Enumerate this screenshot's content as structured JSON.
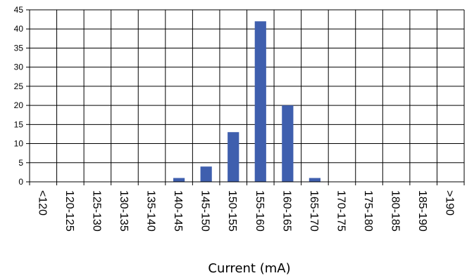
{
  "chart_data": {
    "type": "bar",
    "categories": [
      "<120",
      "120-125",
      "125-130",
      "130-135",
      "135-140",
      "140-145",
      "145-150",
      "150-155",
      "155-160",
      "160-165",
      "165-170",
      "170-175",
      "175-180",
      "180-185",
      "185-190",
      ">190"
    ],
    "values": [
      0,
      0,
      0,
      0,
      0,
      1,
      4,
      13,
      42,
      20,
      1,
      0,
      0,
      0,
      0,
      0
    ],
    "title": "",
    "xlabel": "Current (mA)",
    "ylabel": "",
    "ylim": [
      0,
      45
    ],
    "yticks": [
      0,
      5,
      10,
      15,
      20,
      25,
      30,
      35,
      40,
      45
    ],
    "grid": true,
    "legend": "none",
    "bar_color": "#3f5fae"
  }
}
